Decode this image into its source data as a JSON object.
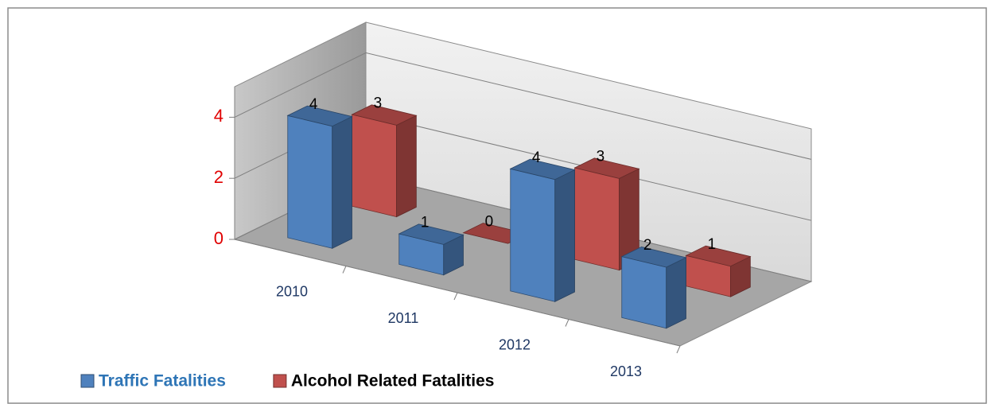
{
  "chart_data": {
    "type": "bar3d",
    "categories": [
      "2010",
      "2011",
      "2012",
      "2013"
    ],
    "series": [
      {
        "name": "Traffic Fatalities",
        "color": "#4f81bd",
        "values": [
          4,
          1,
          4,
          2
        ]
      },
      {
        "name": "Alcohol Related Fatalities",
        "color": "#c0504d",
        "values": [
          3,
          0,
          3,
          1
        ]
      }
    ],
    "ylim": [
      0,
      5
    ],
    "yticks": [
      0,
      2,
      4
    ],
    "grid": true,
    "legend": "bottom-left"
  }
}
